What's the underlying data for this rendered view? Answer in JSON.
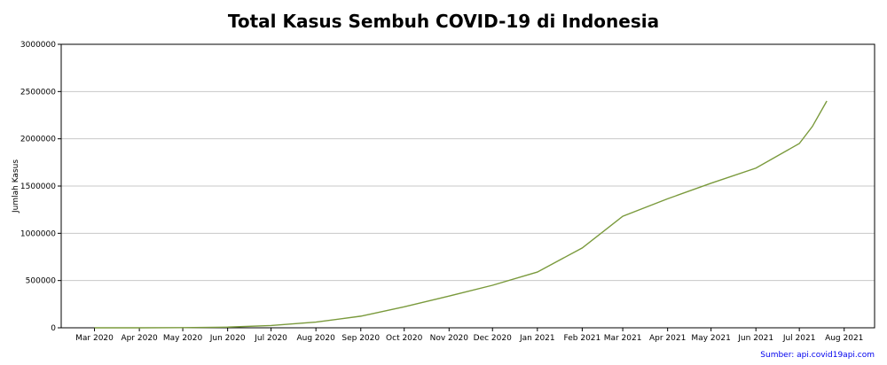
{
  "chart_data": {
    "type": "line",
    "title": "Total Kasus Sembuh COVID-19 di Indonesia",
    "xlabel": "",
    "ylabel": "Jumlah Kasus",
    "ylim": [
      0,
      3000000
    ],
    "xlim": [
      "2020-02-07",
      "2021-08-22"
    ],
    "grid": "horizontal",
    "line_color": "#7a9a3c",
    "y_ticks": [
      "0",
      "500000",
      "1000000",
      "1500000",
      "2000000",
      "2500000",
      "3000000"
    ],
    "x_ticks": [
      {
        "date": "2020-03-01",
        "label": "Mar 2020"
      },
      {
        "date": "2020-04-01",
        "label": "Apr 2020"
      },
      {
        "date": "2020-05-01",
        "label": "May 2020"
      },
      {
        "date": "2020-06-01",
        "label": "Jun 2020"
      },
      {
        "date": "2020-07-01",
        "label": "Jul 2020"
      },
      {
        "date": "2020-08-01",
        "label": "Aug 2020"
      },
      {
        "date": "2020-09-01",
        "label": "Sep 2020"
      },
      {
        "date": "2020-10-01",
        "label": "Oct 2020"
      },
      {
        "date": "2020-11-01",
        "label": "Nov 2020"
      },
      {
        "date": "2020-12-01",
        "label": "Dec 2020"
      },
      {
        "date": "2021-01-01",
        "label": "Jan 2021"
      },
      {
        "date": "2021-02-01",
        "label": "Feb 2021"
      },
      {
        "date": "2021-03-01",
        "label": "Mar 2021"
      },
      {
        "date": "2021-04-01",
        "label": "Apr 2021"
      },
      {
        "date": "2021-05-01",
        "label": "May 2021"
      },
      {
        "date": "2021-06-01",
        "label": "Jun 2021"
      },
      {
        "date": "2021-07-01",
        "label": "Jul 2021"
      },
      {
        "date": "2021-08-01",
        "label": "Aug 2021"
      }
    ],
    "series": [
      {
        "points": [
          {
            "x": "2020-03-01",
            "y": 0
          },
          {
            "x": "2020-04-01",
            "y": 100
          },
          {
            "x": "2020-05-01",
            "y": 1500
          },
          {
            "x": "2020-06-01",
            "y": 7000
          },
          {
            "x": "2020-07-01",
            "y": 24000
          },
          {
            "x": "2020-08-01",
            "y": 60000
          },
          {
            "x": "2020-09-01",
            "y": 123000
          },
          {
            "x": "2020-10-01",
            "y": 222000
          },
          {
            "x": "2020-11-01",
            "y": 336000
          },
          {
            "x": "2020-12-01",
            "y": 450000
          },
          {
            "x": "2021-01-01",
            "y": 590000
          },
          {
            "x": "2021-02-01",
            "y": 845000
          },
          {
            "x": "2021-03-01",
            "y": 1180000
          },
          {
            "x": "2021-04-01",
            "y": 1365000
          },
          {
            "x": "2021-05-01",
            "y": 1530000
          },
          {
            "x": "2021-06-01",
            "y": 1690000
          },
          {
            "x": "2021-07-01",
            "y": 1950000
          },
          {
            "x": "2021-07-10",
            "y": 2130000
          },
          {
            "x": "2021-07-20",
            "y": 2400000
          }
        ]
      }
    ]
  },
  "source_note": "Sumber: api.covid19api.com"
}
